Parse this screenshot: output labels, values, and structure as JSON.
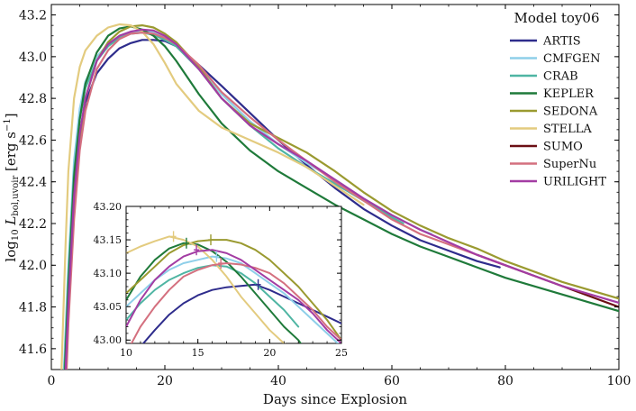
{
  "chart_data": [
    {
      "type": "line",
      "title": "",
      "xlabel": "Days since Explosion",
      "ylabel_prefix": "log",
      "ylabel_sub": "10",
      "ylabel_L": "L",
      "ylabel_lsub": "bol,uvoir",
      "ylabel_units": "[erg s",
      "ylabel_exp": "−1",
      "ylabel_close": "]",
      "xlim": [
        0,
        100
      ],
      "ylim": [
        41.5,
        43.25
      ],
      "xticks": [
        0,
        20,
        40,
        60,
        80,
        100
      ],
      "yticks": [
        41.6,
        41.8,
        42.0,
        42.2,
        42.4,
        42.6,
        42.8,
        43.0,
        43.2
      ],
      "xtick_labels": [
        "0",
        "20",
        "40",
        "60",
        "80",
        "100"
      ],
      "ytick_labels": [
        "41.6",
        "41.8",
        "42.0",
        "42.2",
        "42.4",
        "42.6",
        "42.8",
        "43.0",
        "43.2"
      ],
      "grid": false,
      "legend_title": "Model toy06",
      "legend_position": "top-right",
      "series": [
        {
          "name": "ARTIS",
          "color": "#2e2c8c",
          "x": [
            2.5,
            3,
            4,
            5,
            6,
            8,
            10,
            12,
            14,
            16,
            18,
            20,
            22,
            26,
            30,
            35,
            40,
            45,
            50,
            55,
            60,
            65,
            70,
            75,
            79
          ],
          "y": [
            41.5,
            41.85,
            42.3,
            42.6,
            42.78,
            42.92,
            42.99,
            43.04,
            43.065,
            43.08,
            43.08,
            43.075,
            43.05,
            42.96,
            42.86,
            42.73,
            42.6,
            42.48,
            42.37,
            42.27,
            42.19,
            42.12,
            42.07,
            42.02,
            41.99
          ]
        },
        {
          "name": "CMFGEN",
          "color": "#8ecfe9",
          "x": [
            2.2,
            3,
            4,
            5,
            6,
            8,
            10,
            12,
            14,
            16,
            18,
            20,
            22,
            26,
            30,
            35,
            40,
            45,
            50,
            55,
            60,
            65,
            67
          ],
          "y": [
            41.5,
            42.0,
            42.5,
            42.75,
            42.88,
            43.0,
            43.06,
            43.1,
            43.12,
            43.125,
            43.115,
            43.09,
            43.06,
            42.95,
            42.82,
            42.69,
            42.58,
            42.49,
            42.41,
            42.32,
            42.24,
            42.17,
            42.15
          ]
        },
        {
          "name": "CRAB",
          "color": "#4fb5a3",
          "x": [
            2.3,
            3,
            4,
            5,
            6,
            8,
            10,
            12,
            14,
            16,
            18,
            20,
            22,
            26,
            30,
            35,
            40,
            45,
            50,
            55,
            60,
            62
          ],
          "y": [
            41.5,
            41.95,
            42.45,
            42.7,
            42.85,
            42.98,
            43.05,
            43.09,
            43.11,
            43.115,
            43.105,
            43.08,
            43.05,
            42.94,
            42.8,
            42.67,
            42.56,
            42.47,
            42.39,
            42.31,
            42.23,
            42.2
          ]
        },
        {
          "name": "KEPLER",
          "color": "#1f7a3a",
          "x": [
            2.4,
            3,
            4,
            5,
            6,
            8,
            10,
            12,
            14,
            16,
            18,
            20,
            22,
            26,
            30,
            35,
            40,
            45,
            50,
            55,
            60,
            65,
            70,
            75,
            80,
            85,
            90,
            95,
            100
          ],
          "y": [
            41.5,
            41.9,
            42.42,
            42.7,
            42.87,
            43.02,
            43.1,
            43.135,
            43.145,
            43.13,
            43.1,
            43.05,
            42.98,
            42.82,
            42.68,
            42.55,
            42.45,
            42.37,
            42.29,
            42.22,
            42.15,
            42.09,
            42.04,
            41.99,
            41.94,
            41.9,
            41.86,
            41.82,
            41.78
          ]
        },
        {
          "name": "SEDONA",
          "color": "#9a9a30",
          "x": [
            2.6,
            3,
            4,
            5,
            6,
            8,
            10,
            12,
            14,
            16,
            18,
            20,
            22,
            26,
            30,
            35,
            40,
            45,
            50,
            55,
            60,
            65,
            70,
            75,
            80,
            85,
            90,
            95,
            100
          ],
          "y": [
            41.5,
            41.75,
            42.28,
            42.6,
            42.8,
            42.98,
            43.07,
            43.12,
            43.145,
            43.15,
            43.14,
            43.11,
            43.07,
            42.95,
            42.8,
            42.68,
            42.61,
            42.54,
            42.45,
            42.35,
            42.26,
            42.19,
            42.13,
            42.08,
            42.02,
            41.97,
            41.92,
            41.88,
            41.84
          ]
        },
        {
          "name": "STELLA",
          "color": "#e3cb7f",
          "x": [
            1.8,
            2.5,
            3,
            4,
            5,
            6,
            8,
            10,
            12,
            14,
            16,
            18,
            20,
            22,
            26,
            30,
            35,
            40,
            45,
            50,
            55
          ],
          "y": [
            41.5,
            42.1,
            42.45,
            42.8,
            42.95,
            43.03,
            43.1,
            43.14,
            43.155,
            43.15,
            43.12,
            43.06,
            42.97,
            42.87,
            42.74,
            42.66,
            42.6,
            42.54,
            42.47,
            42.38,
            42.29
          ]
        },
        {
          "name": "SUMO",
          "color": "#6b0f14",
          "x": [
            75,
            80,
            85,
            90,
            95,
            100
          ],
          "y": [
            42.05,
            42.0,
            41.95,
            41.9,
            41.85,
            41.8
          ]
        },
        {
          "name": "SuperNu",
          "color": "#d4707f",
          "x": [
            2.7,
            3,
            4,
            5,
            6,
            8,
            10,
            12,
            14,
            16,
            18,
            20,
            22,
            26,
            30,
            35,
            40,
            45,
            50,
            55,
            60,
            65,
            70,
            75,
            80
          ],
          "y": [
            41.5,
            41.72,
            42.22,
            42.55,
            42.74,
            42.94,
            43.03,
            43.085,
            43.11,
            43.115,
            43.11,
            43.09,
            43.06,
            42.96,
            42.83,
            42.71,
            42.6,
            42.5,
            42.4,
            42.31,
            42.22,
            42.15,
            42.1,
            42.05,
            42.0
          ]
        },
        {
          "name": "URILIGHT",
          "color": "#a33ca3",
          "x": [
            2.5,
            3,
            4,
            5,
            6,
            8,
            10,
            12,
            14,
            16,
            18,
            20,
            22,
            26,
            30,
            35,
            40,
            45,
            50,
            55,
            60,
            65,
            70,
            75,
            80,
            85,
            90,
            95,
            100
          ],
          "y": [
            41.5,
            41.82,
            42.33,
            42.63,
            42.8,
            42.98,
            43.06,
            43.1,
            43.12,
            43.13,
            43.125,
            43.1,
            43.06,
            42.94,
            42.8,
            42.67,
            42.58,
            42.5,
            42.41,
            42.32,
            42.24,
            42.17,
            42.11,
            42.05,
            42.0,
            41.95,
            41.9,
            41.86,
            41.82
          ]
        }
      ]
    },
    {
      "type": "line",
      "title": "",
      "inset": true,
      "xlim": [
        10,
        25
      ],
      "ylim": [
        42.995,
        43.2
      ],
      "xticks": [
        10,
        15,
        20,
        25
      ],
      "yticks": [
        43.0,
        43.05,
        43.1,
        43.15,
        43.2
      ],
      "xtick_labels": [
        "10",
        "15",
        "20",
        "25"
      ],
      "ytick_labels": [
        "43.00",
        "43.05",
        "43.10",
        "43.15",
        "43.20"
      ],
      "grid": false,
      "peak_markers": [
        {
          "series": "STELLA",
          "x": 13.3,
          "y": 43.155
        },
        {
          "series": "KEPLER",
          "x": 14.2,
          "y": 43.145
        },
        {
          "series": "SEDONA",
          "x": 15.9,
          "y": 43.15
        },
        {
          "series": "URILIGHT",
          "x": 14.9,
          "y": 43.135
        },
        {
          "series": "CMFGEN",
          "x": 16.3,
          "y": 43.125
        },
        {
          "series": "SuperNu",
          "x": 16.6,
          "y": 43.115
        },
        {
          "series": "ARTIS",
          "x": 19.2,
          "y": 43.083
        }
      ],
      "series": [
        {
          "name": "ARTIS",
          "color": "#2e2c8c",
          "x": [
            11,
            12,
            13,
            14,
            15,
            16,
            17,
            18,
            19,
            20,
            21,
            22,
            23,
            24,
            25
          ],
          "y": [
            42.99,
            43.015,
            43.038,
            43.055,
            43.067,
            43.075,
            43.079,
            43.081,
            43.083,
            43.075,
            43.065,
            43.055,
            43.045,
            43.035,
            43.025
          ]
        },
        {
          "name": "CMFGEN",
          "color": "#8ecfe9",
          "x": [
            10,
            11,
            12,
            13,
            14,
            15,
            16,
            17,
            18,
            19,
            20,
            21,
            22,
            23,
            24,
            25
          ],
          "y": [
            43.05,
            43.07,
            43.09,
            43.105,
            43.115,
            43.12,
            43.125,
            43.122,
            43.115,
            43.1,
            43.085,
            43.07,
            43.05,
            43.03,
            43.01,
            42.99
          ]
        },
        {
          "name": "CRAB",
          "color": "#4fb5a3",
          "x": [
            10,
            11,
            12,
            13,
            14,
            15,
            16,
            17,
            18,
            19,
            20,
            21,
            22
          ],
          "y": [
            43.03,
            43.055,
            43.075,
            43.09,
            43.1,
            43.108,
            43.112,
            43.11,
            43.1,
            43.085,
            43.065,
            43.045,
            43.02
          ]
        },
        {
          "name": "KEPLER",
          "color": "#1f7a3a",
          "x": [
            10,
            11,
            12,
            13,
            14,
            15,
            16,
            17,
            18,
            19,
            20,
            21,
            22,
            23
          ],
          "y": [
            43.06,
            43.095,
            43.12,
            43.137,
            43.145,
            43.143,
            43.133,
            43.117,
            43.095,
            43.07,
            43.045,
            43.02,
            43.0,
            42.97
          ]
        },
        {
          "name": "SEDONA",
          "color": "#9a9a30",
          "x": [
            10,
            11,
            12,
            13,
            14,
            15,
            16,
            17,
            18,
            19,
            20,
            21,
            22,
            23,
            24,
            25
          ],
          "y": [
            43.07,
            43.09,
            43.11,
            43.13,
            43.142,
            43.148,
            43.15,
            43.15,
            43.145,
            43.135,
            43.12,
            43.1,
            43.08,
            43.055,
            43.03,
            43.0
          ]
        },
        {
          "name": "STELLA",
          "color": "#e3cb7f",
          "x": [
            10,
            11,
            12,
            13,
            14,
            15,
            16,
            17,
            18,
            19,
            20,
            21,
            22
          ],
          "y": [
            43.13,
            43.14,
            43.148,
            43.155,
            43.15,
            43.14,
            43.12,
            43.095,
            43.065,
            43.04,
            43.015,
            42.995,
            42.975
          ]
        },
        {
          "name": "SuperNu",
          "color": "#d4707f",
          "x": [
            10,
            11,
            12,
            13,
            14,
            15,
            16,
            17,
            18,
            19,
            20,
            21,
            22,
            23,
            24,
            25
          ],
          "y": [
            42.98,
            43.02,
            43.05,
            43.075,
            43.095,
            43.105,
            43.112,
            43.115,
            43.113,
            43.108,
            43.1,
            43.085,
            43.065,
            43.045,
            43.02,
            43.0
          ]
        },
        {
          "name": "URILIGHT",
          "color": "#a33ca3",
          "x": [
            10,
            11,
            12,
            13,
            14,
            15,
            16,
            17,
            18,
            19,
            20,
            21,
            22,
            23,
            24,
            25
          ],
          "y": [
            43.02,
            43.06,
            43.09,
            43.11,
            43.125,
            43.133,
            43.135,
            43.13,
            43.12,
            43.105,
            43.09,
            43.075,
            43.06,
            43.04,
            43.015,
            42.995
          ]
        }
      ]
    }
  ]
}
